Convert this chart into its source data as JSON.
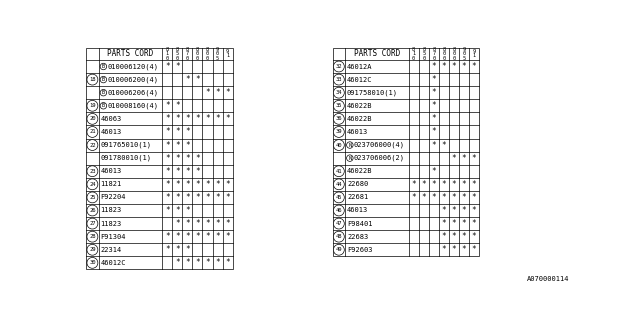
{
  "title": "A070000114",
  "bg_color": "#ffffff",
  "left_table": {
    "rows": [
      {
        "ref": "",
        "prefix": "B",
        "part": "010006120(4)",
        "marks": [
          1,
          1,
          0,
          0,
          0,
          0,
          0
        ]
      },
      {
        "ref": "18",
        "prefix": "B",
        "part": "010006200(4)",
        "marks": [
          0,
          0,
          1,
          1,
          0,
          0,
          0
        ]
      },
      {
        "ref": "",
        "prefix": "B",
        "part": "010006206(4)",
        "marks": [
          0,
          0,
          0,
          0,
          1,
          1,
          1
        ]
      },
      {
        "ref": "19",
        "prefix": "B",
        "part": "010008160(4)",
        "marks": [
          1,
          1,
          0,
          0,
          0,
          0,
          0
        ]
      },
      {
        "ref": "20",
        "prefix": "",
        "part": "46063",
        "marks": [
          1,
          1,
          1,
          1,
          1,
          1,
          1
        ]
      },
      {
        "ref": "21",
        "prefix": "",
        "part": "46013",
        "marks": [
          1,
          1,
          1,
          0,
          0,
          0,
          0
        ]
      },
      {
        "ref": "22",
        "prefix": "",
        "part": "091765010(1)",
        "marks": [
          1,
          1,
          1,
          0,
          0,
          0,
          0
        ]
      },
      {
        "ref": "",
        "prefix": "",
        "part": "091780010(1)",
        "marks": [
          1,
          1,
          1,
          1,
          0,
          0,
          0
        ]
      },
      {
        "ref": "23",
        "prefix": "",
        "part": "46013",
        "marks": [
          1,
          1,
          1,
          1,
          0,
          0,
          0
        ]
      },
      {
        "ref": "24",
        "prefix": "",
        "part": "11821",
        "marks": [
          1,
          1,
          1,
          1,
          1,
          1,
          1
        ]
      },
      {
        "ref": "25",
        "prefix": "",
        "part": "F92204",
        "marks": [
          1,
          1,
          1,
          1,
          1,
          1,
          1
        ]
      },
      {
        "ref": "26",
        "prefix": "",
        "part": "11823",
        "marks": [
          1,
          1,
          1,
          0,
          0,
          0,
          0
        ]
      },
      {
        "ref": "27",
        "prefix": "",
        "part": "11823",
        "marks": [
          0,
          1,
          1,
          1,
          1,
          1,
          1
        ]
      },
      {
        "ref": "28",
        "prefix": "",
        "part": "F91304",
        "marks": [
          1,
          1,
          1,
          1,
          1,
          1,
          1
        ]
      },
      {
        "ref": "29",
        "prefix": "",
        "part": "22314",
        "marks": [
          1,
          1,
          1,
          0,
          0,
          0,
          0
        ]
      },
      {
        "ref": "30",
        "prefix": "",
        "part": "46012C",
        "marks": [
          0,
          1,
          1,
          1,
          1,
          1,
          1
        ]
      }
    ]
  },
  "right_table": {
    "rows": [
      {
        "ref": "32",
        "prefix": "",
        "part": "46012A",
        "marks": [
          0,
          0,
          1,
          1,
          1,
          1,
          1
        ]
      },
      {
        "ref": "33",
        "prefix": "",
        "part": "46012C",
        "marks": [
          0,
          0,
          1,
          0,
          0,
          0,
          0
        ]
      },
      {
        "ref": "34",
        "prefix": "",
        "part": "091758010(1)",
        "marks": [
          0,
          0,
          1,
          0,
          0,
          0,
          0
        ]
      },
      {
        "ref": "35",
        "prefix": "",
        "part": "46022B",
        "marks": [
          0,
          0,
          1,
          0,
          0,
          0,
          0
        ]
      },
      {
        "ref": "36",
        "prefix": "",
        "part": "46022B",
        "marks": [
          0,
          0,
          1,
          0,
          0,
          0,
          0
        ]
      },
      {
        "ref": "39",
        "prefix": "",
        "part": "46013",
        "marks": [
          0,
          0,
          1,
          0,
          0,
          0,
          0
        ]
      },
      {
        "ref": "40",
        "prefix": "N",
        "part": "023706000(4)",
        "marks": [
          0,
          0,
          1,
          1,
          0,
          0,
          0
        ]
      },
      {
        "ref": "",
        "prefix": "N",
        "part": "023706006(2)",
        "marks": [
          0,
          0,
          0,
          0,
          1,
          1,
          1
        ]
      },
      {
        "ref": "41",
        "prefix": "",
        "part": "46022B",
        "marks": [
          0,
          0,
          1,
          0,
          0,
          0,
          0
        ]
      },
      {
        "ref": "44",
        "prefix": "",
        "part": "22680",
        "marks": [
          1,
          1,
          1,
          1,
          1,
          1,
          1
        ]
      },
      {
        "ref": "45",
        "prefix": "",
        "part": "22681",
        "marks": [
          1,
          1,
          1,
          1,
          1,
          1,
          1
        ]
      },
      {
        "ref": "46",
        "prefix": "",
        "part": "46013",
        "marks": [
          0,
          0,
          0,
          1,
          1,
          1,
          1
        ]
      },
      {
        "ref": "47",
        "prefix": "",
        "part": "F98401",
        "marks": [
          0,
          0,
          0,
          1,
          1,
          1,
          1
        ]
      },
      {
        "ref": "48",
        "prefix": "",
        "part": "22683",
        "marks": [
          0,
          0,
          0,
          1,
          1,
          1,
          1
        ]
      },
      {
        "ref": "49",
        "prefix": "",
        "part": "F92603",
        "marks": [
          0,
          0,
          0,
          1,
          1,
          1,
          1
        ]
      }
    ]
  },
  "col_labels": [
    "8\n1\n0",
    "8\n5\n0",
    "8\n7\n0",
    "8\n0\n0",
    "8\n0\n0",
    "9\n0\n5",
    "9\n1"
  ]
}
